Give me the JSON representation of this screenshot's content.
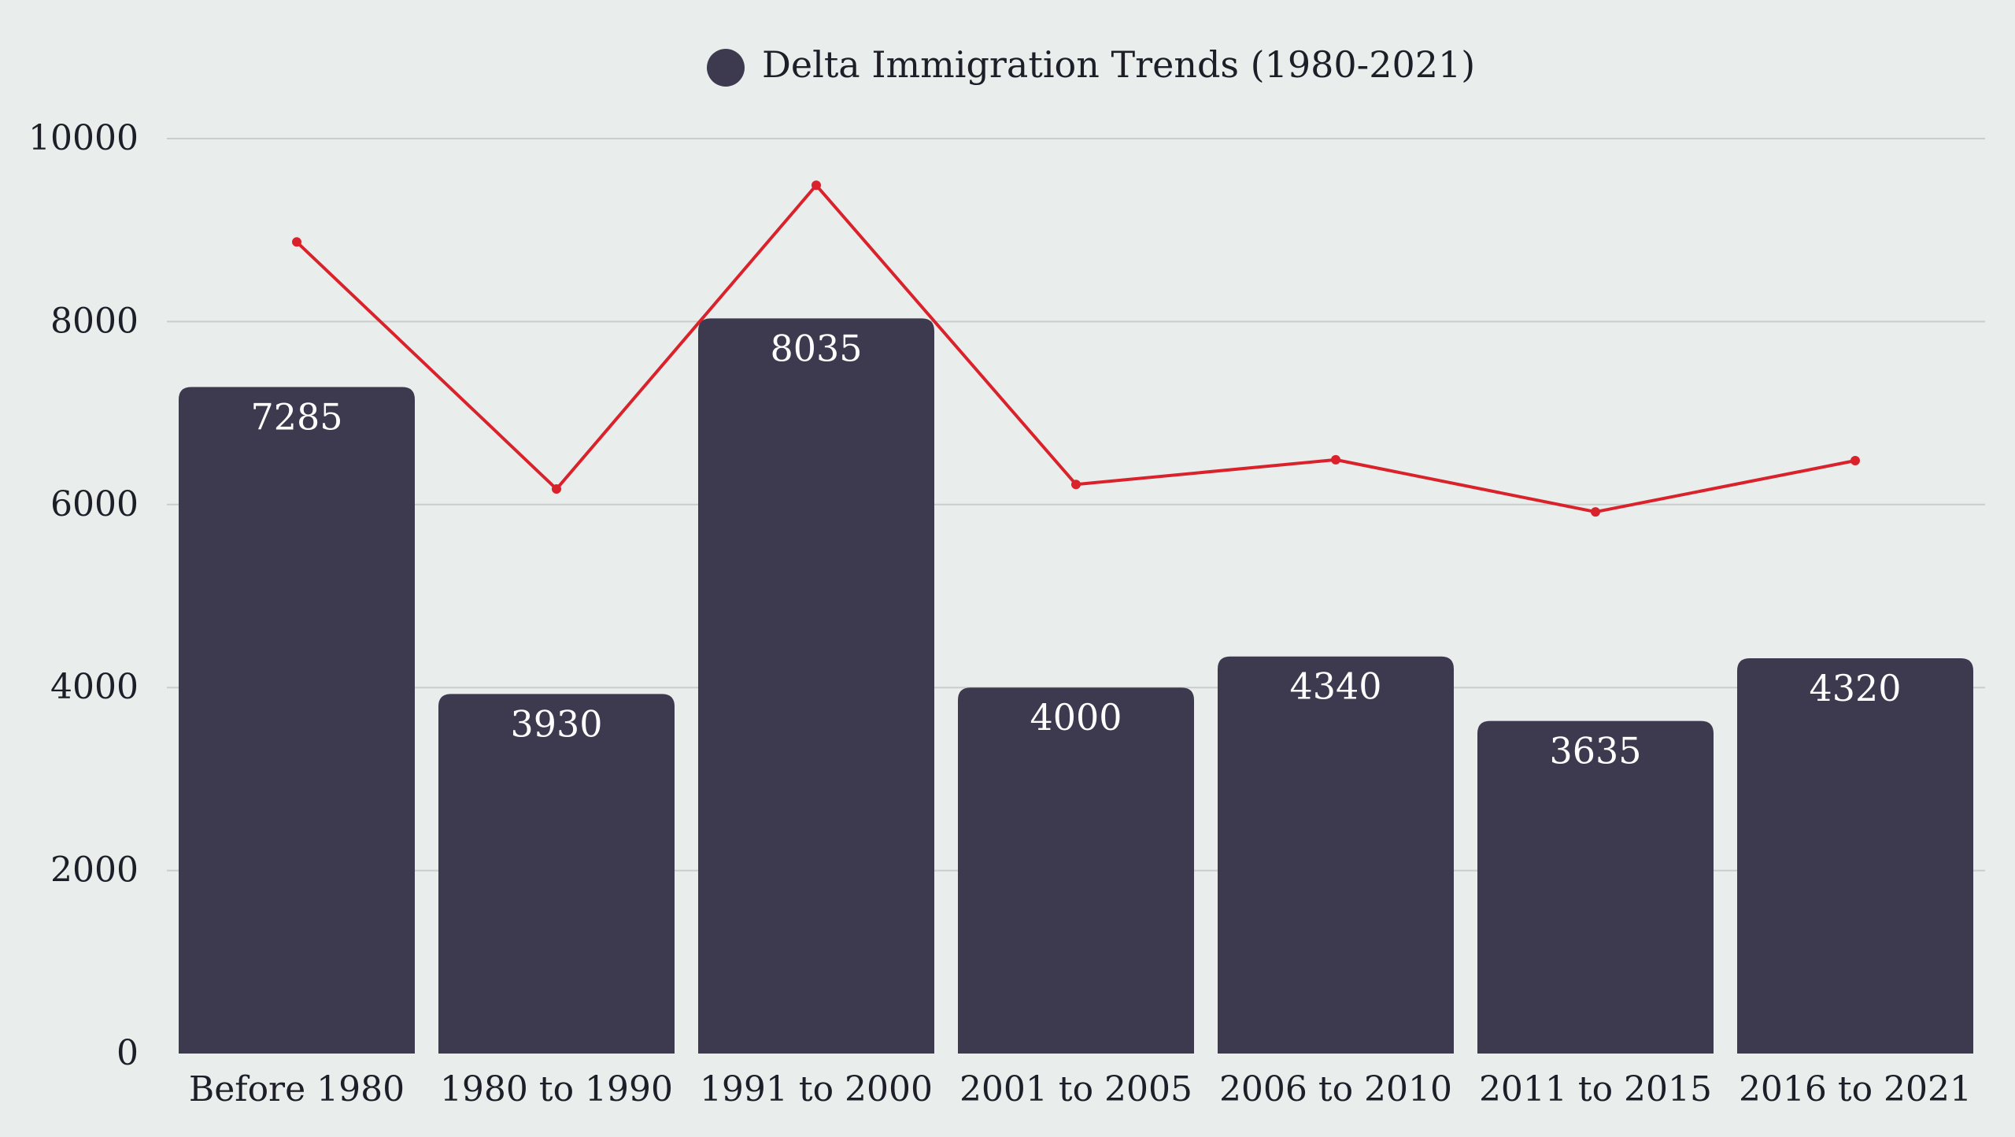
{
  "chart_data": {
    "type": "bar",
    "title": "",
    "xlabel": "",
    "ylabel": "",
    "ylim": [
      0,
      10000
    ],
    "yticks": [
      0,
      2000,
      4000,
      6000,
      8000,
      10000
    ],
    "grid": true,
    "legend_position": "top-center",
    "categories": [
      "Before 1980",
      "1980 to 1990",
      "1991 to 2000",
      "2001 to 2005",
      "2006 to 2010",
      "2011 to 2015",
      "2016 to 2021"
    ],
    "series": [
      {
        "name": "Delta Immigration Trends (1980-2021)",
        "type": "bar",
        "color": "#3d3a50",
        "values": [
          7285,
          3930,
          8035,
          4000,
          4340,
          3635,
          4320
        ],
        "show_labels": true,
        "label_color": "#ffffff"
      },
      {
        "name": "",
        "type": "line",
        "color": "#d9222b",
        "values": [
          8870,
          6170,
          9490,
          6220,
          6490,
          5920,
          6480
        ],
        "show_labels": false
      }
    ]
  }
}
